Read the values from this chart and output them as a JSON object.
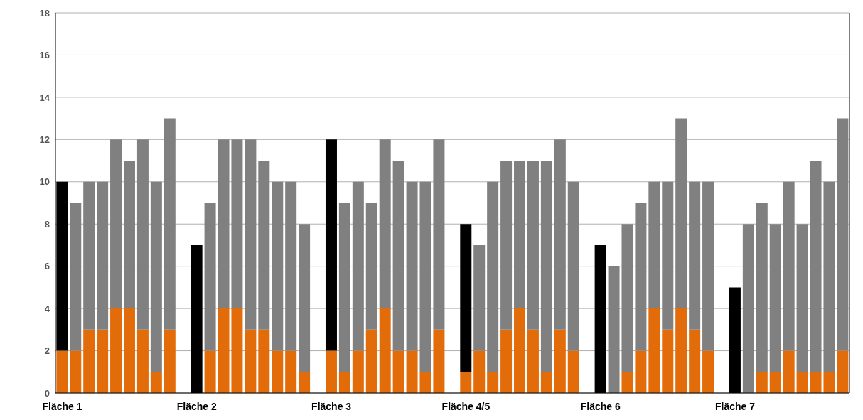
{
  "chart_data": {
    "type": "bar",
    "stacked": true,
    "categories": [
      "Fläche 1",
      null,
      null,
      null,
      null,
      null,
      null,
      null,
      null,
      null,
      "Fläche 2",
      null,
      null,
      null,
      null,
      null,
      null,
      null,
      null,
      null,
      "Fläche 3",
      null,
      null,
      null,
      null,
      null,
      null,
      null,
      null,
      null,
      "Fläche 4/5",
      null,
      null,
      null,
      null,
      null,
      null,
      null,
      null,
      null,
      "Fläche 6",
      null,
      null,
      null,
      null,
      null,
      null,
      null,
      null,
      null,
      "Fläche 7",
      null,
      null,
      null,
      null,
      null,
      null,
      null,
      null
    ],
    "series": [
      {
        "color": "#e36c0a",
        "values": [
          2,
          2,
          3,
          3,
          4,
          4,
          3,
          1,
          3,
          null,
          0,
          2,
          4,
          4,
          3,
          3,
          2,
          2,
          1,
          null,
          2,
          1,
          2,
          3,
          4,
          2,
          2,
          1,
          3,
          null,
          1,
          2,
          1,
          3,
          4,
          3,
          1,
          3,
          2,
          null,
          0,
          0,
          1,
          2,
          4,
          3,
          4,
          3,
          2,
          null,
          0,
          0,
          1,
          1,
          2,
          1,
          1,
          1,
          2
        ]
      },
      {
        "colors": [
          "#000000",
          "#808080",
          "#808080",
          "#808080",
          "#808080",
          "#808080",
          "#808080",
          "#808080",
          "#808080",
          null,
          "#000000",
          "#808080",
          "#808080",
          "#808080",
          "#808080",
          "#808080",
          "#808080",
          "#808080",
          "#808080",
          null,
          "#000000",
          "#808080",
          "#808080",
          "#808080",
          "#808080",
          "#808080",
          "#808080",
          "#808080",
          "#808080",
          null,
          "#000000",
          "#808080",
          "#808080",
          "#808080",
          "#808080",
          "#808080",
          "#808080",
          "#808080",
          "#808080",
          null,
          "#000000",
          "#808080",
          "#808080",
          "#808080",
          "#808080",
          "#808080",
          "#808080",
          "#808080",
          "#808080",
          null,
          "#000000",
          "#808080",
          "#808080",
          "#808080",
          "#808080",
          "#808080",
          "#808080",
          "#808080",
          "#808080"
        ],
        "values": [
          8,
          7,
          7,
          7,
          8,
          7,
          9,
          9,
          10,
          null,
          7,
          7,
          8,
          8,
          9,
          8,
          8,
          8,
          7,
          null,
          10,
          8,
          8,
          6,
          8,
          9,
          8,
          9,
          9,
          null,
          7,
          5,
          9,
          8,
          7,
          8,
          10,
          9,
          8,
          null,
          7,
          6,
          7,
          7,
          6,
          7,
          9,
          7,
          8,
          null,
          5,
          8,
          8,
          7,
          8,
          7,
          10,
          9,
          11
        ]
      }
    ],
    "ylim": [
      0,
      18
    ],
    "yticks": [
      0,
      2,
      4,
      6,
      8,
      10,
      12,
      14,
      16,
      18
    ],
    "grid": "y",
    "legend": false
  }
}
